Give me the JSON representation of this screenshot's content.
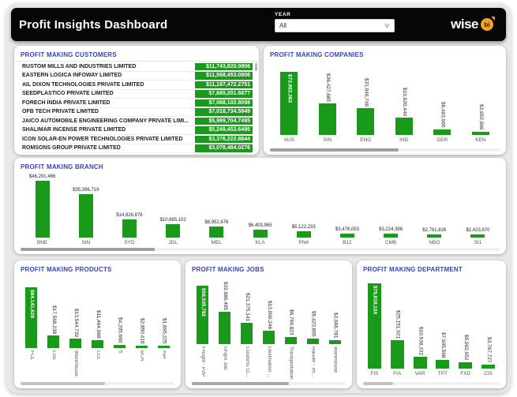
{
  "header": {
    "title": "Profit Insights Dashboard",
    "year_filter": {
      "label": "YEAR",
      "value": "All"
    },
    "logo": {
      "brand": "wise",
      "badge": "bi"
    }
  },
  "colors": {
    "bar_green": "#1a9a1a",
    "title_blue": "#3644b4",
    "header_black": "#060606",
    "badge_orange": "#f6a31d"
  },
  "customers": {
    "title": "PROFIT MAKING CUSTOMERS",
    "rows": [
      {
        "name": "RUSTOM MILLS AND INDUSTRIES LIMITED",
        "value": "$11,743,820.0806"
      },
      {
        "name": "EASTERN LOGICA INFOWAY LIMITED",
        "value": "$11,568,453.0806"
      },
      {
        "name": "AIL DIXON TECHNOLOGIES PRIVATE LIMITED",
        "value": "$11,187,472.2751"
      },
      {
        "name": "SEEDPLASTICO PRIVATE LIMITED",
        "value": "$7,685,201.6877"
      },
      {
        "name": "FORECH INDIA PRIVATE LIMITED",
        "value": "$7,088,102.8098"
      },
      {
        "name": "OFB TECH PRIVATE LIMITED",
        "value": "$7,018,734.5949"
      },
      {
        "name": "JAICO AUTOMOBILE ENGINEERING COMPANY PRIVATE LIMI...",
        "value": "$5,999,704.7495"
      },
      {
        "name": "SHALIMAR INCENSE PRIVATE LIMITED",
        "value": "$5,249,453.6495"
      },
      {
        "name": "ICON SOLAR-EN POWER TECHNOLOGIES PRIVATE LIMITED",
        "value": "$3,376,222.8844"
      },
      {
        "name": "ROMSONS GROUP PRIVATE LIMITED",
        "value": "$3,078,484.0276"
      }
    ]
  },
  "chart_data": [
    {
      "key": "companies",
      "type": "bar",
      "title": "PROFIT MAKING COMPANIES",
      "categories": [
        "AUS",
        "SIN",
        "ENG",
        "IND",
        "GER",
        "KEN"
      ],
      "values": [
        72862363,
        36427685,
        31046746,
        19920440,
        6403965,
        3652969
      ],
      "labels": [
        "$72,862,363",
        "$36,427,685",
        "$31,046,746",
        "$19,920,440",
        "$6,403,965",
        "$3,652,969"
      ],
      "ylim": [
        0,
        72862363
      ],
      "first_value_inside": true,
      "value_labels_rotated": true,
      "category_labels_rotated": false
    },
    {
      "key": "branch",
      "type": "bar",
      "title": "PROFIT MAKING BRANCH",
      "categories": [
        "BNE",
        "SIN",
        "SYD",
        "JDL",
        "MEL",
        "KLA",
        "PN4",
        "B12",
        "CMB",
        "NBO",
        "SI1"
      ],
      "values": [
        46291466,
        35396719,
        14826876,
        10665102,
        8952676,
        6403965,
        5122233,
        3476053,
        3224396,
        2781826,
        2423670
      ],
      "labels": [
        "$46,291,466",
        "$35,396,719",
        "$14,826,876",
        "$10,665,102",
        "$8,952,676",
        "$6,403,965",
        "$5,122,233",
        "$3,476,053",
        "$3,224,396",
        "$2,781,826",
        "$2,423,670"
      ],
      "ylim": [
        0,
        46291466
      ],
      "first_value_inside": false,
      "value_labels_rotated": false,
      "category_labels_rotated": false
    },
    {
      "key": "products",
      "type": "bar",
      "title": "PROFIT MAKING PRODUCTS",
      "categories": [
        "FCL",
        "LSE",
        "Warehouse",
        "LCL",
        "5",
        "BCN",
        "AIR"
      ],
      "values": [
        84141629,
        17568238,
        13544739,
        11464068,
        4205660,
        2850418,
        1895225
      ],
      "labels": [
        "$84,141,629",
        "$17,568,238",
        "$13,544,739",
        "$11,464,068",
        "$4,205,660",
        "$2,850,418",
        "$1,895,225"
      ],
      "ylim": [
        0,
        84141629
      ],
      "first_value_inside": true,
      "value_labels_rotated": true,
      "category_labels_rotated": true
    },
    {
      "key": "jobs",
      "type": "bar",
      "title": "PROFIT MAKING JOBS",
      "categories": [
        "Freight - P2P",
        "Origin Job",
        "Customs Cl...",
        "Destination ...",
        "Transportation",
        "Haulier - Im...",
        "Warehouse"
      ],
      "values": [
        58535792,
        32686485,
        21375141,
        13090246,
        6766823,
        5423865,
        3666781
      ],
      "labels": [
        "$58,535,792",
        "$32,686,485",
        "$21,375,141",
        "$13,090,246",
        "$6,766,823",
        "$5,423,865",
        "$3,666,781"
      ],
      "ylim": [
        0,
        58535792
      ],
      "first_value_inside": true,
      "value_labels_rotated": true,
      "category_labels_rotated": true
    },
    {
      "key": "department",
      "type": "bar",
      "title": "PROFIT MAKING DEPARTMENT",
      "categories": [
        "FIS",
        "FIA",
        "VAR",
        "TPT",
        "FXD",
        "CIS"
      ],
      "values": [
        75818124,
        25151921,
        10538332,
        7905568,
        5902952,
        3797727
      ],
      "labels": [
        "$75,818,124",
        "$25,151,921",
        "$10,538,332",
        "$7,905,568",
        "$5,902,952",
        "$3,797,727"
      ],
      "ylim": [
        0,
        75818124
      ],
      "first_value_inside": true,
      "value_labels_rotated": true,
      "category_labels_rotated": false
    }
  ]
}
